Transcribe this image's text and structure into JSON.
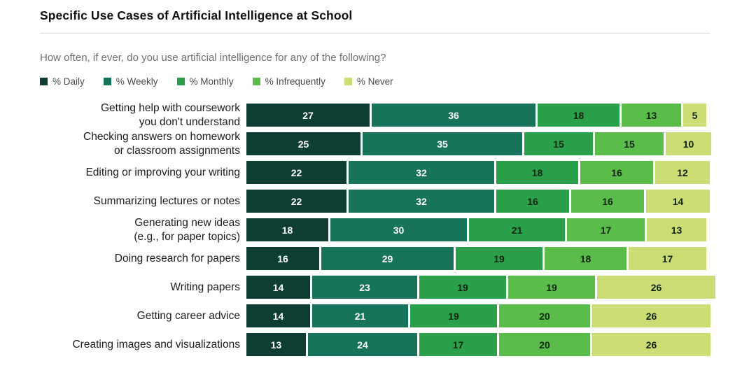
{
  "header": {
    "title": "Specific Use Cases of Artificial Intelligence at School"
  },
  "question": "How often, if ever, do you use artificial intelligence for any of the following?",
  "legend": [
    {
      "label": "% Daily",
      "color": "#0e3e33"
    },
    {
      "label": "% Weekly",
      "color": "#17745a"
    },
    {
      "label": "% Monthly",
      "color": "#2aa04a"
    },
    {
      "label": "% Infrequently",
      "color": "#5abd4a"
    },
    {
      "label": "% Never",
      "color": "#cbdd74"
    }
  ],
  "chart_data": {
    "type": "bar",
    "orientation": "horizontal-stacked",
    "title": "Specific Use Cases of Artificial Intelligence at School",
    "subtitle": "How often, if ever, do you use artificial intelligence for any of the following?",
    "xlim": [
      0,
      100
    ],
    "unit": "%",
    "legend_position": "top",
    "categories": [
      "Getting help with coursework\nyou don't understand",
      "Checking answers on homework\nor classroom assignments",
      "Editing or improving your writing",
      "Summarizing lectures or notes",
      "Generating new ideas\n(e.g., for paper topics)",
      "Doing research for papers",
      "Writing papers",
      "Getting career advice",
      "Creating images and visualizations"
    ],
    "series": [
      {
        "name": "% Daily",
        "color": "#0e3e33",
        "text_color": "#ffffff",
        "values": [
          27,
          25,
          22,
          22,
          18,
          16,
          14,
          14,
          13
        ]
      },
      {
        "name": "% Weekly",
        "color": "#17745a",
        "text_color": "#ffffff",
        "values": [
          36,
          35,
          32,
          32,
          30,
          29,
          23,
          21,
          24
        ]
      },
      {
        "name": "% Monthly",
        "color": "#2aa04a",
        "text_color": "#10240f",
        "values": [
          18,
          15,
          18,
          16,
          21,
          19,
          19,
          19,
          17
        ]
      },
      {
        "name": "% Infrequently",
        "color": "#5abd4a",
        "text_color": "#10240f",
        "values": [
          13,
          15,
          16,
          16,
          17,
          18,
          19,
          20,
          20
        ]
      },
      {
        "name": "% Never",
        "color": "#cbdd74",
        "text_color": "#10240f",
        "values": [
          5,
          10,
          12,
          14,
          13,
          17,
          26,
          26,
          26
        ]
      }
    ]
  }
}
